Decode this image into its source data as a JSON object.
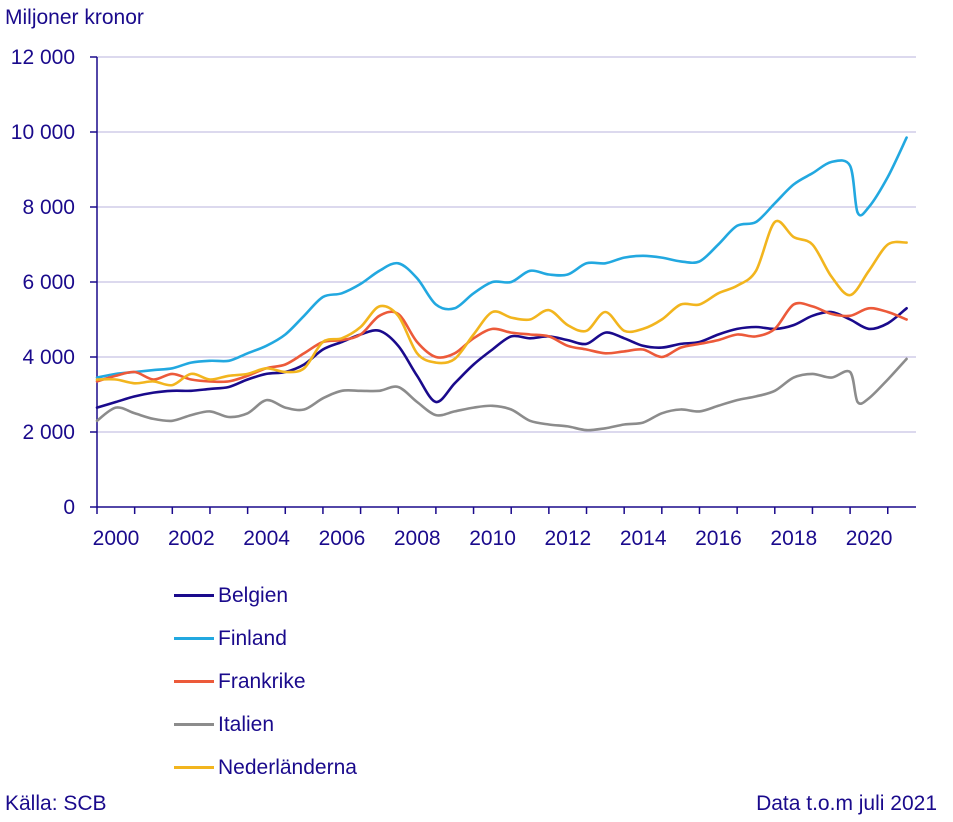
{
  "chart_data": {
    "type": "line",
    "title": "",
    "ylabel": "Miljoner kronor",
    "xlabel": "",
    "xlim": [
      2000,
      2021.75
    ],
    "ylim": [
      0,
      12000
    ],
    "y_ticks": [
      0,
      2000,
      4000,
      6000,
      8000,
      10000,
      12000
    ],
    "y_tick_labels": [
      "0",
      "2 000",
      "4 000",
      "6 000",
      "8 000",
      "10 000",
      "12 000"
    ],
    "x_ticks": [
      2000,
      2002,
      2004,
      2006,
      2008,
      2010,
      2012,
      2014,
      2016,
      2018,
      2020
    ],
    "x_tick_labels": [
      "2000",
      "2002",
      "2004",
      "2006",
      "2008",
      "2010",
      "2012",
      "2014",
      "2016",
      "2018",
      "2020"
    ],
    "grid": "horizontal",
    "legend_position": "bottom-left",
    "series": [
      {
        "name": "Belgien",
        "color": "#1a0a8c",
        "x": [
          2000,
          2000.5,
          2001,
          2001.5,
          2002,
          2002.5,
          2003,
          2003.5,
          2004,
          2004.5,
          2005,
          2005.5,
          2006,
          2006.5,
          2007,
          2007.5,
          2008,
          2008.5,
          2009,
          2009.5,
          2010,
          2010.5,
          2011,
          2011.5,
          2012,
          2012.5,
          2013,
          2013.5,
          2014,
          2014.5,
          2015,
          2015.5,
          2016,
          2016.5,
          2017,
          2017.5,
          2018,
          2018.5,
          2019,
          2019.5,
          2020,
          2020.5,
          2021,
          2021.5
        ],
        "y": [
          2650,
          2800,
          2950,
          3050,
          3100,
          3100,
          3150,
          3200,
          3400,
          3550,
          3600,
          3800,
          4200,
          4400,
          4600,
          4700,
          4300,
          3500,
          2800,
          3300,
          3800,
          4200,
          4550,
          4500,
          4550,
          4450,
          4350,
          4650,
          4500,
          4300,
          4250,
          4350,
          4400,
          4600,
          4750,
          4800,
          4750,
          4850,
          5100,
          5200,
          5000,
          4750,
          4900,
          5300
        ]
      },
      {
        "name": "Finland",
        "color": "#22a8e0",
        "x": [
          2000,
          2000.5,
          2001,
          2001.5,
          2002,
          2002.5,
          2003,
          2003.5,
          2004,
          2004.5,
          2005,
          2005.5,
          2006,
          2006.5,
          2007,
          2007.5,
          2008,
          2008.5,
          2009,
          2009.5,
          2010,
          2010.5,
          2011,
          2011.5,
          2012,
          2012.5,
          2013,
          2013.5,
          2014,
          2014.5,
          2015,
          2015.5,
          2016,
          2016.5,
          2017,
          2017.5,
          2018,
          2018.5,
          2019,
          2019.5,
          2020,
          2020.2,
          2020.5,
          2021,
          2021.5
        ],
        "y": [
          3450,
          3550,
          3600,
          3650,
          3700,
          3850,
          3900,
          3900,
          4100,
          4300,
          4600,
          5100,
          5600,
          5700,
          5950,
          6300,
          6500,
          6100,
          5400,
          5300,
          5700,
          6000,
          6000,
          6300,
          6200,
          6200,
          6500,
          6500,
          6650,
          6700,
          6650,
          6550,
          6550,
          7000,
          7500,
          7600,
          8100,
          8600,
          8900,
          9200,
          9100,
          7850,
          8000,
          8800,
          9850
        ]
      },
      {
        "name": "Frankrike",
        "color": "#ec5a3a",
        "x": [
          2000,
          2000.5,
          2001,
          2001.5,
          2002,
          2002.5,
          2003,
          2003.5,
          2004,
          2004.5,
          2005,
          2005.5,
          2006,
          2006.5,
          2007,
          2007.5,
          2008,
          2008.5,
          2009,
          2009.5,
          2010,
          2010.5,
          2011,
          2011.5,
          2012,
          2012.5,
          2013,
          2013.5,
          2014,
          2014.5,
          2015,
          2015.5,
          2016,
          2016.5,
          2017,
          2017.5,
          2018,
          2018.5,
          2019,
          2019.5,
          2020,
          2020.5,
          2021,
          2021.5
        ],
        "y": [
          3350,
          3500,
          3600,
          3400,
          3550,
          3400,
          3350,
          3350,
          3500,
          3700,
          3800,
          4100,
          4400,
          4450,
          4600,
          5100,
          5150,
          4400,
          4000,
          4100,
          4500,
          4750,
          4650,
          4600,
          4550,
          4300,
          4200,
          4100,
          4150,
          4200,
          4000,
          4250,
          4350,
          4450,
          4600,
          4550,
          4750,
          5400,
          5350,
          5150,
          5100,
          5300,
          5200,
          5000
        ]
      },
      {
        "name": "Italien",
        "color": "#8c8c8c",
        "x": [
          2000,
          2000.5,
          2001,
          2001.5,
          2002,
          2002.5,
          2003,
          2003.5,
          2004,
          2004.5,
          2005,
          2005.5,
          2006,
          2006.5,
          2007,
          2007.5,
          2008,
          2008.5,
          2009,
          2009.5,
          2010,
          2010.5,
          2011,
          2011.5,
          2012,
          2012.5,
          2013,
          2013.5,
          2014,
          2014.5,
          2015,
          2015.5,
          2016,
          2016.5,
          2017,
          2017.5,
          2018,
          2018.5,
          2019,
          2019.5,
          2020,
          2020.2,
          2020.5,
          2021,
          2021.5
        ],
        "y": [
          2300,
          2650,
          2500,
          2350,
          2300,
          2450,
          2550,
          2400,
          2500,
          2850,
          2650,
          2600,
          2900,
          3100,
          3100,
          3100,
          3200,
          2800,
          2450,
          2550,
          2650,
          2700,
          2600,
          2300,
          2200,
          2150,
          2050,
          2100,
          2200,
          2250,
          2500,
          2600,
          2550,
          2700,
          2850,
          2950,
          3100,
          3450,
          3550,
          3450,
          3600,
          2800,
          2900,
          3400,
          3950
        ]
      },
      {
        "name": "Nederländerna",
        "color": "#f2b51e",
        "x": [
          2000,
          2000.5,
          2001,
          2001.5,
          2002,
          2002.5,
          2003,
          2003.5,
          2004,
          2004.5,
          2005,
          2005.5,
          2006,
          2006.5,
          2007,
          2007.5,
          2008,
          2008.5,
          2009,
          2009.5,
          2010,
          2010.5,
          2011,
          2011.5,
          2012,
          2012.5,
          2013,
          2013.5,
          2014,
          2014.5,
          2015,
          2015.5,
          2016,
          2016.5,
          2017,
          2017.5,
          2018,
          2018.5,
          2019,
          2019.5,
          2020,
          2020.5,
          2021,
          2021.5
        ],
        "y": [
          3400,
          3400,
          3300,
          3350,
          3250,
          3550,
          3400,
          3500,
          3550,
          3700,
          3600,
          3700,
          4400,
          4500,
          4800,
          5350,
          5100,
          4100,
          3850,
          3950,
          4600,
          5200,
          5050,
          5000,
          5250,
          4850,
          4700,
          5200,
          4700,
          4750,
          5000,
          5400,
          5400,
          5700,
          5900,
          6300,
          7600,
          7200,
          7000,
          6150,
          5650,
          6300,
          7000,
          7050
        ]
      }
    ]
  },
  "source_text": "Källa: SCB",
  "note_text": "Data t.o.m juli 2021"
}
